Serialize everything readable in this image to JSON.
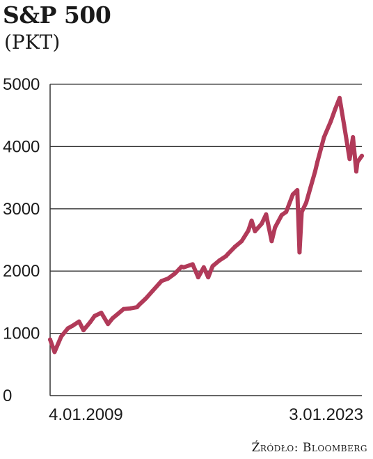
{
  "chart_data": {
    "type": "line",
    "title": "S&P 500",
    "subtitle": "(PKT)",
    "xlabel": "",
    "ylabel": "",
    "ylim": [
      0,
      5000
    ],
    "yticks": [
      "5000",
      "4000",
      "3000",
      "2000",
      "1000",
      "0"
    ],
    "xticks": [
      "4.01.2009",
      "3.01.2023"
    ],
    "grid": true,
    "line_color": "#b13a59",
    "series": [
      {
        "name": "",
        "x": [
          2009.0,
          2009.2,
          2009.5,
          2009.8,
          2010.0,
          2010.3,
          2010.5,
          2010.8,
          2011.0,
          2011.3,
          2011.6,
          2011.8,
          2012.0,
          2012.3,
          2012.6,
          2012.9,
          2013.0,
          2013.3,
          2013.6,
          2013.9,
          2014.0,
          2014.3,
          2014.6,
          2014.9,
          2015.0,
          2015.4,
          2015.65,
          2015.9,
          2016.1,
          2016.3,
          2016.6,
          2016.9,
          2017.0,
          2017.3,
          2017.6,
          2017.9,
          2018.05,
          2018.2,
          2018.5,
          2018.7,
          2018.95,
          2019.1,
          2019.4,
          2019.6,
          2019.9,
          2020.1,
          2020.2,
          2020.3,
          2020.5,
          2020.7,
          2020.9,
          2021.0,
          2021.3,
          2021.6,
          2021.8,
          2022.0,
          2022.2,
          2022.45,
          2022.6,
          2022.75,
          2022.8,
          2023.0
        ],
        "y": [
          900,
          700,
          950,
          1080,
          1120,
          1190,
          1050,
          1180,
          1280,
          1330,
          1150,
          1240,
          1300,
          1390,
          1400,
          1420,
          1460,
          1560,
          1680,
          1800,
          1840,
          1880,
          1960,
          2070,
          2060,
          2110,
          1900,
          2060,
          1900,
          2080,
          2170,
          2240,
          2280,
          2390,
          2480,
          2650,
          2810,
          2640,
          2760,
          2910,
          2480,
          2700,
          2900,
          2950,
          3230,
          3300,
          2300,
          2950,
          3100,
          3350,
          3600,
          3750,
          4150,
          4400,
          4600,
          4780,
          4350,
          3800,
          4150,
          3600,
          3750,
          3850
        ]
      }
    ]
  },
  "source_label": "Źródło: Bloomberg"
}
